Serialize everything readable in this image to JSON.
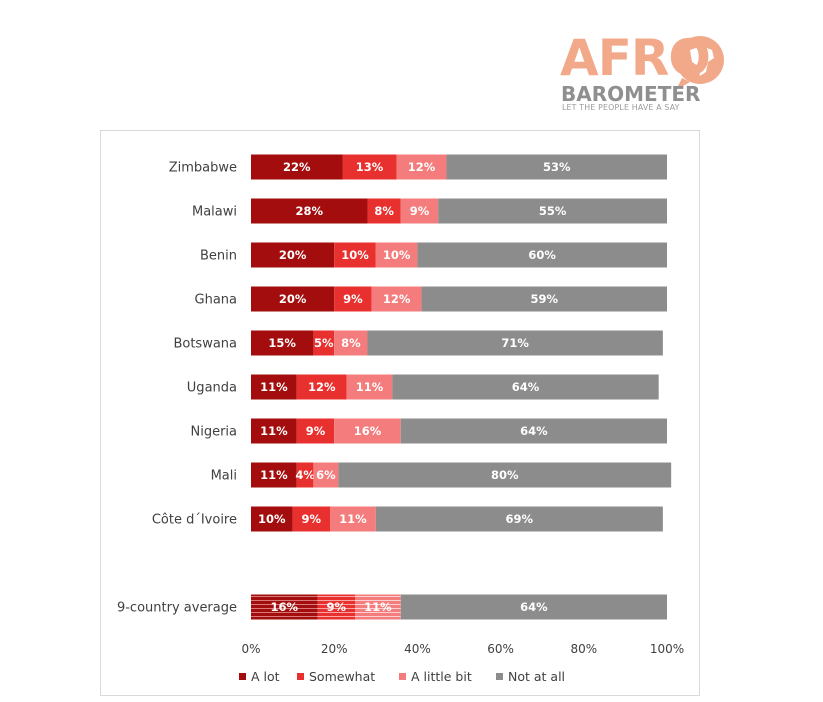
{
  "logo": {
    "name": "AFRO",
    "sub": "BAROMETER",
    "tagline": "LET THE PEOPLE HAVE A SAY"
  },
  "chart_data": {
    "type": "bar",
    "orientation": "horizontal-stacked-100",
    "categories": [
      "Zimbabwe",
      "Malawi",
      "Benin",
      "Ghana",
      "Botswana",
      "Uganda",
      "Nigeria",
      "Mali",
      "Côte d´Ivoire",
      "9-country average"
    ],
    "series": [
      {
        "name": "A lot",
        "color": "#a30d0d",
        "values": [
          22,
          28,
          20,
          20,
          15,
          11,
          11,
          11,
          10,
          16
        ]
      },
      {
        "name": "Somewhat",
        "color": "#e8312f",
        "values": [
          13,
          8,
          10,
          9,
          5,
          12,
          9,
          4,
          9,
          9
        ]
      },
      {
        "name": "A little bit",
        "color": "#f47c7c",
        "values": [
          12,
          9,
          10,
          12,
          8,
          11,
          16,
          6,
          11,
          11
        ]
      },
      {
        "name": "Not at all",
        "color": "#8c8c8c",
        "values": [
          53,
          55,
          60,
          59,
          71,
          64,
          64,
          80,
          69,
          64
        ]
      }
    ],
    "value_suffix": "%",
    "xlim": [
      0,
      100
    ],
    "xticks": [
      "0%",
      "20%",
      "40%",
      "60%",
      "80%",
      "100%"
    ],
    "legend_position": "bottom",
    "grid": false,
    "average_row_pattern": "striped"
  }
}
